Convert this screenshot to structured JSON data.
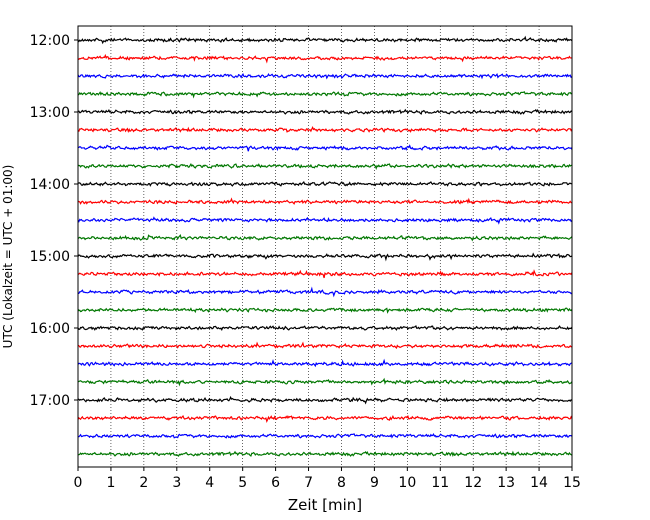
{
  "chart_data": {
    "type": "line",
    "xlabel": "Zeit  [min]",
    "ylabel": "UTC (Lokalzeit = UTC + 01:00)",
    "xlim": [
      0,
      15
    ],
    "x_ticks": [
      "0",
      "1",
      "2",
      "3",
      "4",
      "5",
      "6",
      "7",
      "8",
      "9",
      "10",
      "11",
      "12",
      "13",
      "14",
      "15"
    ],
    "y_tick_labels": [
      "12:00",
      "13:00",
      "14:00",
      "15:00",
      "16:00",
      "17:00"
    ],
    "grid": "vertical dotted",
    "trace_interval_min": 15,
    "start_time": "12:00",
    "trace_count": 24,
    "trace_colors": [
      "#000000",
      "#ff0000",
      "#0000ff",
      "#007700"
    ]
  }
}
